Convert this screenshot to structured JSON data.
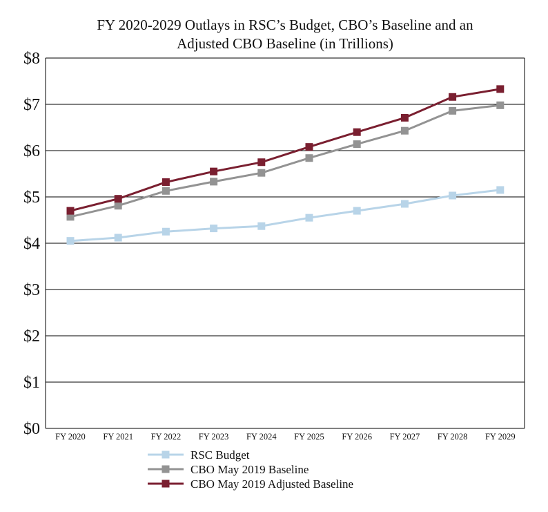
{
  "chart_data": {
    "type": "line",
    "title": [
      "FY 2020-2029 Outlays in RSC’s Budget, CBO’s Baseline and an",
      "Adjusted CBO Baseline (in Trillions)"
    ],
    "xlabel": "",
    "ylabel": "",
    "categories": [
      "FY 2020",
      "FY 2021",
      "FY 2022",
      "FY 2023",
      "FY 2024",
      "FY 2025",
      "FY 2026",
      "FY 2027",
      "FY 2028",
      "FY 2029"
    ],
    "yticks": [
      "$0",
      "$1",
      "$2",
      "$3",
      "$4",
      "$5",
      "$6",
      "$7",
      "$8"
    ],
    "ylim": [
      0,
      8
    ],
    "grid": true,
    "legend_position": "bottom",
    "series": [
      {
        "name": "RSC Budget",
        "color": "#b8d4e8",
        "marker": "square",
        "values": [
          4.05,
          4.12,
          4.25,
          4.32,
          4.37,
          4.55,
          4.7,
          4.85,
          5.03,
          5.15
        ]
      },
      {
        "name": "CBO May 2019 Baseline",
        "color": "#939393",
        "marker": "square",
        "values": [
          4.57,
          4.81,
          5.13,
          5.33,
          5.52,
          5.84,
          6.14,
          6.43,
          6.86,
          6.98
        ]
      },
      {
        "name": "CBO May 2019 Adjusted Baseline",
        "color": "#7a1f30",
        "marker": "square",
        "values": [
          4.7,
          4.96,
          5.32,
          5.55,
          5.75,
          6.08,
          6.4,
          6.71,
          7.16,
          7.33
        ]
      }
    ]
  }
}
